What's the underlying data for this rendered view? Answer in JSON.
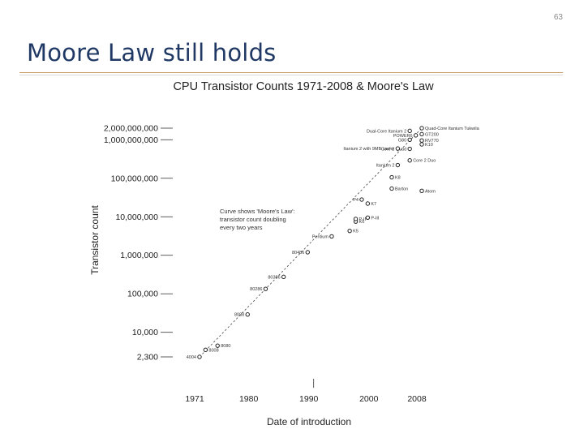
{
  "page": {
    "number": "63",
    "title": "Moore Law still holds"
  },
  "colors": {
    "title": "#1f3864",
    "rule": "#c9a06a",
    "ink": "#222222"
  },
  "chart_data": {
    "type": "scatter",
    "title": "CPU Transistor Counts 1971-2008 & Moore's Law",
    "xlabel": "Date of introduction",
    "ylabel": "Transistor count",
    "scale_y": "log",
    "x_ticks": [
      "1971",
      "1980",
      "1990",
      "2000",
      "2008"
    ],
    "y_ticks": [
      "2,300",
      "10,000",
      "100,000",
      "1,000,000",
      "10,000,000",
      "100,000,000",
      "1,000,000,000",
      "2,000,000,000"
    ],
    "annotation": [
      "Curve shows 'Moore's Law':",
      "transistor count doubling",
      "every two years"
    ],
    "trend": {
      "label": "Moore's Law",
      "from": [
        1971,
        2300
      ],
      "to": [
        2008,
        2000000000
      ]
    },
    "points": [
      {
        "x": 1971,
        "y": 2300,
        "label": "4004"
      },
      {
        "x": 1972,
        "y": 3500,
        "label": "8008"
      },
      {
        "x": 1974,
        "y": 4500,
        "label": "8080"
      },
      {
        "x": 1979,
        "y": 29000,
        "label": "8088"
      },
      {
        "x": 1982,
        "y": 134000,
        "label": "80286"
      },
      {
        "x": 1985,
        "y": 275000,
        "label": "80386"
      },
      {
        "x": 1989,
        "y": 1200000,
        "label": "80486"
      },
      {
        "x": 1993,
        "y": 3100000,
        "label": "Pentium"
      },
      {
        "x": 1996,
        "y": 4300000,
        "label": "K5"
      },
      {
        "x": 1997,
        "y": 7500000,
        "label": "K6"
      },
      {
        "x": 1997,
        "y": 8800000,
        "label": "P-II"
      },
      {
        "x": 1999,
        "y": 9500000,
        "label": "P-III"
      },
      {
        "x": 1999,
        "y": 22000000,
        "label": "K7"
      },
      {
        "x": 1998,
        "y": 28000000,
        "label": "P4"
      },
      {
        "x": 2003,
        "y": 54000000,
        "label": "Barton"
      },
      {
        "x": 2003,
        "y": 106000000,
        "label": "K8"
      },
      {
        "x": 2004,
        "y": 220000000,
        "label": "Itanium 2"
      },
      {
        "x": 2006,
        "y": 291000000,
        "label": "Core 2 Duo"
      },
      {
        "x": 2008,
        "y": 47000000,
        "label": "Atom"
      },
      {
        "x": 2006,
        "y": 580000000,
        "label": "Core 2 Quad"
      },
      {
        "x": 2008,
        "y": 758000000,
        "label": "K10"
      },
      {
        "x": 2004,
        "y": 592000000,
        "label": "Itanium 2 with 9MB cache"
      },
      {
        "x": 2006,
        "y": 1000000000,
        "label": "G80"
      },
      {
        "x": 2007,
        "y": 1300000000,
        "label": "POWER6"
      },
      {
        "x": 2006,
        "y": 1700000000,
        "label": "Dual-Core Itanium 2"
      },
      {
        "x": 2008,
        "y": 2000000000,
        "label": "Quad-Core Itanium Tukwila"
      },
      {
        "x": 2008,
        "y": 1400000000,
        "label": "GT200"
      },
      {
        "x": 2008,
        "y": 956000000,
        "label": "RV770"
      }
    ]
  }
}
